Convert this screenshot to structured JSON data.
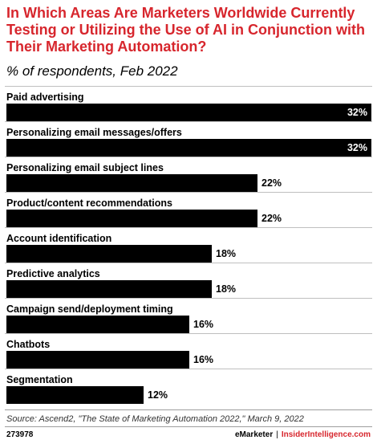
{
  "header": {
    "title": "In Which Areas Are Marketers Worldwide Currently Testing or Utilizing the Use of AI in Conjunction with Their Marketing Automation?",
    "subtitle": "% of respondents, Feb 2022"
  },
  "chart_data": {
    "type": "bar",
    "orientation": "horizontal",
    "categories": [
      "Paid advertising",
      "Personalizing email messages/offers",
      "Personalizing email subject lines",
      "Product/content recommendations",
      "Account identification",
      "Predictive analytics",
      "Campaign send/deployment timing",
      "Chatbots",
      "Segmentation"
    ],
    "values": [
      32,
      32,
      22,
      22,
      18,
      18,
      16,
      16,
      12
    ],
    "value_labels": [
      "32%",
      "32%",
      "22%",
      "22%",
      "18%",
      "18%",
      "16%",
      "16%",
      "12%"
    ],
    "xlim": [
      0,
      32
    ],
    "grid": false,
    "legend": "none",
    "bar_color": "#000000"
  },
  "footer": {
    "source": "Source: Ascend2, \"The State of Marketing Automation 2022,\" March 9, 2022",
    "chart_id": "273978",
    "brand_left": "eMarketer",
    "brand_sep": "|",
    "brand_right": "InsiderIntelligence.com"
  },
  "colors": {
    "title": "#d7262d",
    "bars": "#000000",
    "brand_accent": "#d7262d"
  }
}
